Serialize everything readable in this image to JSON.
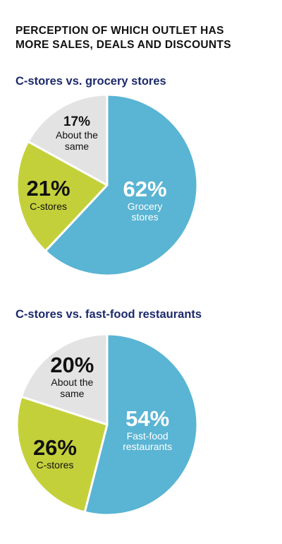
{
  "title": "PERCEPTION OF WHICH OUTLET HAS MORE SALES, DEALS AND DISCOUNTS",
  "chart_data": [
    {
      "type": "pie",
      "title": "C-stores vs. grocery stores",
      "categories": [
        "Grocery stores",
        "C-stores",
        "About the same"
      ],
      "values": [
        62,
        21,
        17
      ],
      "value_labels": [
        "62%",
        "21%",
        "17%"
      ],
      "colors": [
        "#5ab4d3",
        "#c4d03a",
        "#e3e3e3"
      ],
      "label_colors": [
        "#ffffff",
        "#111111",
        "#111111"
      ]
    },
    {
      "type": "pie",
      "title": "C-stores vs. fast-food restaurants",
      "categories": [
        "Fast-food restaurants",
        "C-stores",
        "About the same"
      ],
      "values": [
        54,
        26,
        20
      ],
      "value_labels": [
        "54%",
        "26%",
        "20%"
      ],
      "colors": [
        "#5ab4d3",
        "#c4d03a",
        "#e3e3e3"
      ],
      "label_colors": [
        "#ffffff",
        "#111111",
        "#111111"
      ]
    }
  ]
}
